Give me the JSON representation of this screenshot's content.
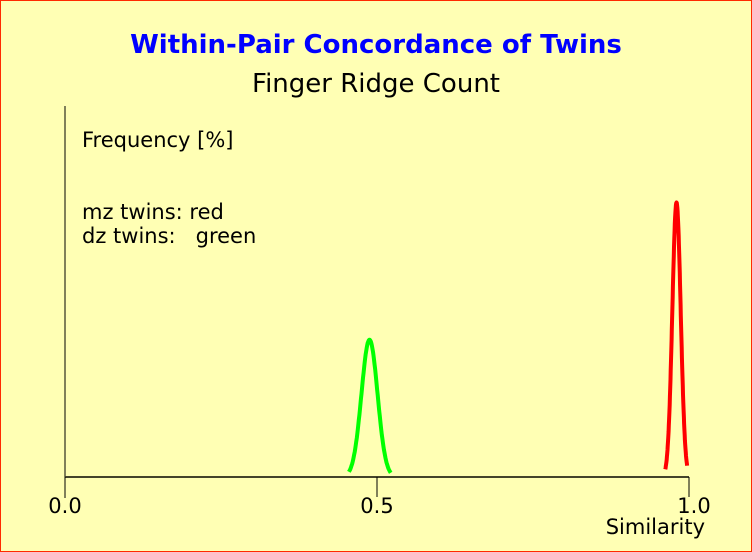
{
  "chart_data": {
    "type": "line",
    "title": "Within-Pair Concordance of Twins",
    "subtitle": "Finger Ridge Count",
    "xlabel": "Similarity",
    "ylabel": "Frequency [%]",
    "xlim": [
      0.0,
      1.0
    ],
    "x_ticks": [
      "0.0",
      "0.5",
      "1.0"
    ],
    "grid": false,
    "legend_lines": [
      "mz twins: red",
      "dz twins:   green"
    ],
    "series": [
      {
        "name": "dz twins",
        "color": "#00ff00",
        "center": 0.488,
        "range": [
          0.455,
          0.522
        ],
        "relative_peak": 0.37
      },
      {
        "name": "mz twins",
        "color": "#ff0000",
        "center": 0.98,
        "range": [
          0.962,
          0.997
        ],
        "relative_peak": 0.74
      }
    ],
    "background": "#ffffb4",
    "title_color": "#0000ff"
  }
}
